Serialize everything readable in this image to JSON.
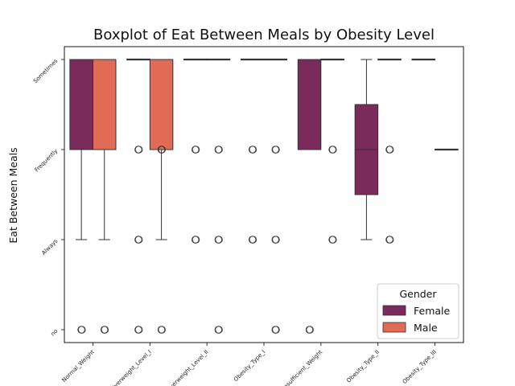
{
  "chart_data": {
    "type": "boxplot",
    "title": "Boxplot of Eat Between Meals by Obesity Level",
    "ylabel": "Eat Between Meals",
    "xlabel": "",
    "y_categories": [
      "no",
      "Always",
      "Frequently",
      "Sometimes"
    ],
    "x_categories": [
      "Normal_Weight",
      "Overweight_Level_I",
      "Overweight_Level_II",
      "Obesity_Type_I",
      "Insufficient_Weight",
      "Obesity_Type_II",
      "Obesity_Type_III"
    ],
    "legend": {
      "title": "Gender",
      "position": "lower-right",
      "entries": [
        {
          "name": "Female",
          "color": "#7b2a5c"
        },
        {
          "name": "Male",
          "color": "#e06c55"
        }
      ]
    },
    "series": [
      {
        "name": "Female",
        "color": "#7b2a5c",
        "boxes": [
          {
            "category": "Normal_Weight",
            "whisker_low": "Always",
            "q1": "Frequently",
            "median": "Sometimes",
            "q3": "Sometimes",
            "whisker_high": "Sometimes",
            "outliers": [
              "no"
            ]
          },
          {
            "category": "Overweight_Level_I",
            "whisker_low": "Sometimes",
            "q1": "Sometimes",
            "median": "Sometimes",
            "q3": "Sometimes",
            "whisker_high": "Sometimes",
            "outliers": [
              "Frequently",
              "Always",
              "no"
            ]
          },
          {
            "category": "Overweight_Level_II",
            "whisker_low": "Sometimes",
            "q1": "Sometimes",
            "median": "Sometimes",
            "q3": "Sometimes",
            "whisker_high": "Sometimes",
            "outliers": [
              "Frequently",
              "Always"
            ]
          },
          {
            "category": "Obesity_Type_I",
            "whisker_low": "Sometimes",
            "q1": "Sometimes",
            "median": "Sometimes",
            "q3": "Sometimes",
            "whisker_high": "Sometimes",
            "outliers": [
              "Frequently",
              "Always"
            ]
          },
          {
            "category": "Insufficient_Weight",
            "whisker_low": "Frequently",
            "q1": "Frequently",
            "median": "Sometimes",
            "q3": "Sometimes",
            "whisker_high": "Sometimes",
            "outliers": [
              "no"
            ]
          },
          {
            "category": "Obesity_Type_II",
            "whisker_low": "Always",
            "q1": 1.5,
            "median": "Frequently",
            "q3": 2.5,
            "whisker_high": "Sometimes",
            "outliers": []
          },
          {
            "category": "Obesity_Type_III",
            "whisker_low": "Sometimes",
            "q1": "Sometimes",
            "median": "Sometimes",
            "q3": "Sometimes",
            "whisker_high": "Sometimes",
            "outliers": []
          }
        ]
      },
      {
        "name": "Male",
        "color": "#e06c55",
        "boxes": [
          {
            "category": "Normal_Weight",
            "whisker_low": "Always",
            "q1": "Frequently",
            "median": "Sometimes",
            "q3": "Sometimes",
            "whisker_high": "Sometimes",
            "outliers": [
              "no"
            ]
          },
          {
            "category": "Overweight_Level_I",
            "whisker_low": "Always",
            "q1": "Frequently",
            "median": "Sometimes",
            "q3": "Sometimes",
            "whisker_high": "Sometimes",
            "outliers": [
              "Frequently",
              "no"
            ]
          },
          {
            "category": "Overweight_Level_II",
            "whisker_low": "Sometimes",
            "q1": "Sometimes",
            "median": "Sometimes",
            "q3": "Sometimes",
            "whisker_high": "Sometimes",
            "outliers": [
              "Frequently",
              "Always",
              "no"
            ]
          },
          {
            "category": "Obesity_Type_I",
            "whisker_low": "Sometimes",
            "q1": "Sometimes",
            "median": "Sometimes",
            "q3": "Sometimes",
            "whisker_high": "Sometimes",
            "outliers": [
              "Frequently",
              "Always",
              "no"
            ]
          },
          {
            "category": "Insufficient_Weight",
            "whisker_low": "Sometimes",
            "q1": "Sometimes",
            "median": "Sometimes",
            "q3": "Sometimes",
            "whisker_high": "Sometimes",
            "outliers": [
              "Frequently",
              "Always"
            ]
          },
          {
            "category": "Obesity_Type_II",
            "whisker_low": "Sometimes",
            "q1": "Sometimes",
            "median": "Sometimes",
            "q3": "Sometimes",
            "whisker_high": "Sometimes",
            "outliers": [
              "Frequently",
              "Always"
            ]
          },
          {
            "category": "Obesity_Type_III",
            "whisker_low": "Frequently",
            "q1": "Frequently",
            "median": "Frequently",
            "q3": "Frequently",
            "whisker_high": "Frequently",
            "outliers": []
          }
        ]
      }
    ],
    "grid": false
  }
}
